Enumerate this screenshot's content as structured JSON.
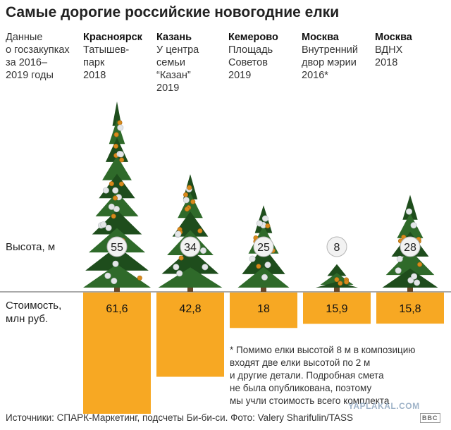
{
  "title": "Самые дорогие российские новогодние елки",
  "intro": "Данные\nо госзакупках\nза 2016–\n2019 годы",
  "row_labels": {
    "height": "Высота, м",
    "cost": "Стоимость,\nмлн руб."
  },
  "note": "* Помимо елки высотой 8 м в композицию\n   входят две елки высотой по 2 м\n   и другие детали. Подробная смета\n   не была опубликована, поэтому\n   мы учли стоимость всего комплекта",
  "source": "Источники: СПАРК-Маркетинг, подсчеты Би-би-си. Фото: Valery Sharifulin/TASS",
  "badge": "BBC",
  "watermark": "YAPLAKAL.COM",
  "colors": {
    "bar": "#f7a823",
    "tree": "#2f6a2a",
    "tree_dark": "#1e4d1c",
    "ornament_gold": "#d88a1c",
    "ornament_silver": "#e4e6e8",
    "trunk": "#6b4a2a"
  },
  "chart_data": {
    "type": "bar",
    "categories": [
      {
        "city": "Красноярск",
        "place": "Татышев-\nпарк",
        "year": "2018"
      },
      {
        "city": "Казань",
        "place": "У центра\nсемьи\n“Казан”",
        "year": "2019"
      },
      {
        "city": "Кемерово",
        "place": "Площадь\nСоветов",
        "year": "2019"
      },
      {
        "city": "Москва",
        "place": "Внутренний\nдвор мэрии",
        "year": "2016*"
      },
      {
        "city": "Москва",
        "place": "ВДНХ",
        "year": "2018"
      }
    ],
    "series": [
      {
        "name": "Высота, м",
        "values": [
          55,
          34,
          25,
          8,
          28
        ],
        "labels": [
          "55",
          "34",
          "25",
          "8",
          "28"
        ]
      },
      {
        "name": "Стоимость, млн руб.",
        "values": [
          61.6,
          42.8,
          18,
          15.9,
          15.8
        ],
        "labels": [
          "61,6",
          "42,8",
          "18",
          "15,9",
          "15,8"
        ]
      }
    ]
  }
}
